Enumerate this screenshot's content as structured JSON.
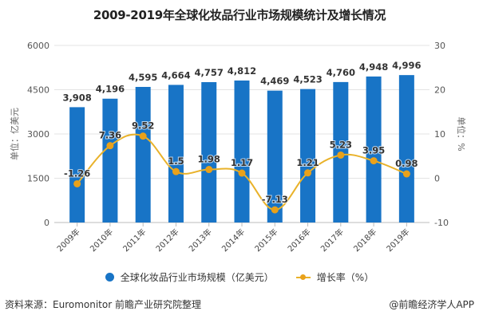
{
  "title": "2009-2019年全球化妆品行业市场规模统计及增长情况",
  "chart_data": {
    "type": "bar",
    "title": "2009-2019年全球化妆品行业市场规模统计及增长情况",
    "categories": [
      "2009年",
      "2010年",
      "2011年",
      "2012年",
      "2013年",
      "2014年",
      "2015年",
      "2016年",
      "2017年",
      "2018年",
      "2019年"
    ],
    "series": [
      {
        "name": "全球化妆品行业市场规模（亿美元）",
        "type": "bar",
        "axis": "left",
        "color": "#1874c6",
        "values": [
          3908,
          4196,
          4595,
          4664,
          4757,
          4812,
          4469,
          4523,
          4760,
          4948,
          4996
        ],
        "labels": [
          "3,908",
          "4,196",
          "4,595",
          "4,664",
          "4,757",
          "4,812",
          "4,469",
          "4,523",
          "4,760",
          "4,948",
          "4,996"
        ]
      },
      {
        "name": "增长率（%）",
        "type": "line",
        "axis": "right",
        "color": "#e9a11a",
        "values": [
          -1.26,
          7.36,
          9.52,
          1.5,
          1.98,
          1.17,
          -7.13,
          1.21,
          5.23,
          3.95,
          0.98
        ],
        "labels": [
          "-1.26",
          "7.36",
          "9.52",
          "1.5",
          "1.98",
          "1.17",
          "-7.13",
          "1.21",
          "5.23",
          "3.95",
          "0.98"
        ]
      }
    ],
    "ylabel": "单位：亿美元",
    "ylabel_right": "单位：%",
    "ylim": [
      0,
      6000
    ],
    "yticks": [
      "0",
      "1500",
      "3000",
      "4500",
      "6000"
    ],
    "ylim_right": [
      -10,
      30
    ],
    "yticks_right": [
      "-10",
      "0",
      "10",
      "20",
      "30"
    ],
    "grid": true,
    "legend_position": "bottom"
  },
  "legend": {
    "bar_label": "全球化妆品行业市场规模（亿美元）",
    "line_label": "增长率（%）"
  },
  "footer": {
    "source": "资料来源：Euromonitor 前瞻产业研究院整理",
    "credit": "@前瞻经济学人APP"
  }
}
